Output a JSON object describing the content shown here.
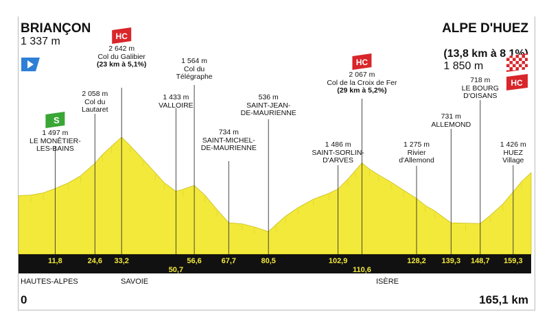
{
  "header": {
    "start_name": "BRIANÇON",
    "start_alt": "1 337 m",
    "finish_name": "ALPE D'HUEZ",
    "finish_climb": "(13,8 km à 8,1%)",
    "finish_alt": "1 850 m"
  },
  "badges": {
    "hc": "HC",
    "sprint": "S"
  },
  "colors": {
    "profile": "#f3e93a",
    "bar": "#111111",
    "hc": "#d8262a",
    "sprint": "#3aa635",
    "start_flag": "#2e7fd6"
  },
  "regions": [
    "HAUTES-ALPES",
    "SAVOIE",
    "ISÈRE"
  ],
  "axis": {
    "start": "0",
    "end": "165,1 km"
  },
  "chart_data": {
    "type": "area",
    "title": "",
    "xlabel": "",
    "ylabel": "",
    "xlim": [
      0,
      165.1
    ],
    "ylim": [
      300,
      2900
    ],
    "x": [
      0,
      4,
      8,
      11.8,
      16,
      20,
      24.6,
      27,
      30,
      33.2,
      36,
      40,
      44,
      47,
      50.7,
      53,
      56.6,
      60,
      64,
      67.7,
      72,
      76,
      80.5,
      83,
      86,
      90,
      95,
      100,
      102.9,
      106,
      108.5,
      110.6,
      113,
      116,
      120,
      124,
      128.2,
      131,
      134,
      139.3,
      144,
      148.7,
      152,
      156,
      159.3,
      162,
      165.1
    ],
    "elevation": [
      1337,
      1350,
      1400,
      1497,
      1620,
      1780,
      2058,
      2250,
      2440,
      2642,
      2450,
      2150,
      1850,
      1620,
      1433,
      1480,
      1564,
      1350,
      1020,
      734,
      710,
      640,
      536,
      700,
      880,
      1070,
      1260,
      1390,
      1486,
      1700,
      1900,
      2067,
      1930,
      1800,
      1640,
      1460,
      1275,
      1120,
      1000,
      731,
      725,
      718,
      900,
      1150,
      1426,
      1650,
      1850
    ],
    "points": [
      {
        "km": "11,8",
        "alt": "1 497 m",
        "name": "LE MONÊTIER-\nLES-BAINS",
        "cat": "sprint"
      },
      {
        "km": "24,6",
        "alt": "2 058 m",
        "name": "Col du\nLautaret"
      },
      {
        "km": "33,2",
        "alt": "2 642 m",
        "name": "Col du Galibier",
        "climb": "(23 km à 5,1%)",
        "cat": "HC"
      },
      {
        "km": "50,7",
        "alt": "1 433 m",
        "name": "VALLOIRE"
      },
      {
        "km": "56,6",
        "alt": "1 564 m",
        "name": "Col du\nTélégraphe"
      },
      {
        "km": "67,7",
        "alt": "734 m",
        "name": "SAINT-MICHEL-\nDE-MAURIENNE"
      },
      {
        "km": "80,5",
        "alt": "536 m",
        "name": "SAINT-JEAN-\nDE-MAURIENNE"
      },
      {
        "km": "102,9",
        "alt": "1 486 m",
        "name": "SAINT-SORLIN-\nD'ARVES"
      },
      {
        "km": "110,6",
        "alt": "2 067 m",
        "name": "Col de la Croix de Fer",
        "climb": "(29 km à 5,2%)",
        "cat": "HC"
      },
      {
        "km": "128,2",
        "alt": "1 275 m",
        "name": "Rivier\nd'Allemond"
      },
      {
        "km": "139,3",
        "alt": "731 m",
        "name": "ALLEMOND"
      },
      {
        "km": "148,7",
        "alt": "718 m",
        "name": "LE BOURG\nD'OISANS"
      },
      {
        "km": "159,3",
        "alt": "1 426 m",
        "name": "HUEZ\nVillage"
      }
    ]
  }
}
